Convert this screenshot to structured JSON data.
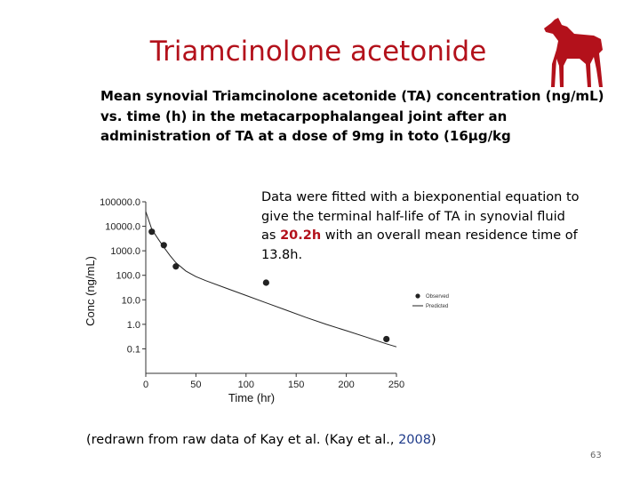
{
  "slide": {
    "title": "Triamcinolone acetonide",
    "description_lines": [
      "Mean synovial Triamcinolone acetonide (TA) concentration (ng/mL)",
      "vs. time (h) in the metacarpophalangeal joint after an",
      "administration of TA at a dose of 9mg in toto (16µg/kg"
    ],
    "note": {
      "prefix": "Data were fitted with a biexponential equation to give the terminal half-life of TA in synovial fluid as ",
      "highlight": "20.2h",
      "suffix": " with an overall mean residence time of 13.8h."
    },
    "credit": {
      "prefix": "(redrawn from raw data of Kay et al. (Kay et al., ",
      "year": "2008",
      "suffix": ")"
    },
    "page_number": "63",
    "horse_icon": "horse-silhouette",
    "colors": {
      "accent": "#b3111b",
      "horse": "#b3111b"
    }
  },
  "chart_data": {
    "type": "scatter",
    "xlabel": "Time (hr)",
    "ylabel": "Conc (ng/mL)",
    "xlim": [
      0,
      250
    ],
    "ylim": [
      0.01,
      100000
    ],
    "y_scale": "log",
    "x_ticks": [
      0,
      50,
      100,
      150,
      200,
      250
    ],
    "x_tick_labels": [
      "0",
      "50",
      "100",
      "150",
      "200",
      "250"
    ],
    "y_ticks": [
      100000,
      10000,
      1000,
      100,
      10,
      1,
      0.1
    ],
    "y_tick_labels": [
      "100000.0",
      "10000.0",
      "1000.0",
      "100.0",
      "10.0",
      "1.0",
      "0.1"
    ],
    "grid": false,
    "legend_position": "right",
    "series": [
      {
        "name": "Observed",
        "kind": "points",
        "x": [
          6,
          18,
          30,
          120,
          240
        ],
        "y": [
          6000,
          1700,
          230,
          50,
          0.25
        ]
      },
      {
        "name": "Predicted",
        "kind": "line",
        "x": [
          0,
          6,
          12,
          18,
          24,
          30,
          40,
          50,
          60,
          80,
          100,
          120,
          140,
          160,
          180,
          200,
          220,
          240,
          250
        ],
        "y": [
          40000,
          7500,
          3200,
          1400,
          650,
          330,
          150,
          88,
          60,
          30,
          15,
          7.5,
          3.8,
          1.9,
          1.0,
          0.55,
          0.3,
          0.16,
          0.12
        ]
      }
    ]
  }
}
